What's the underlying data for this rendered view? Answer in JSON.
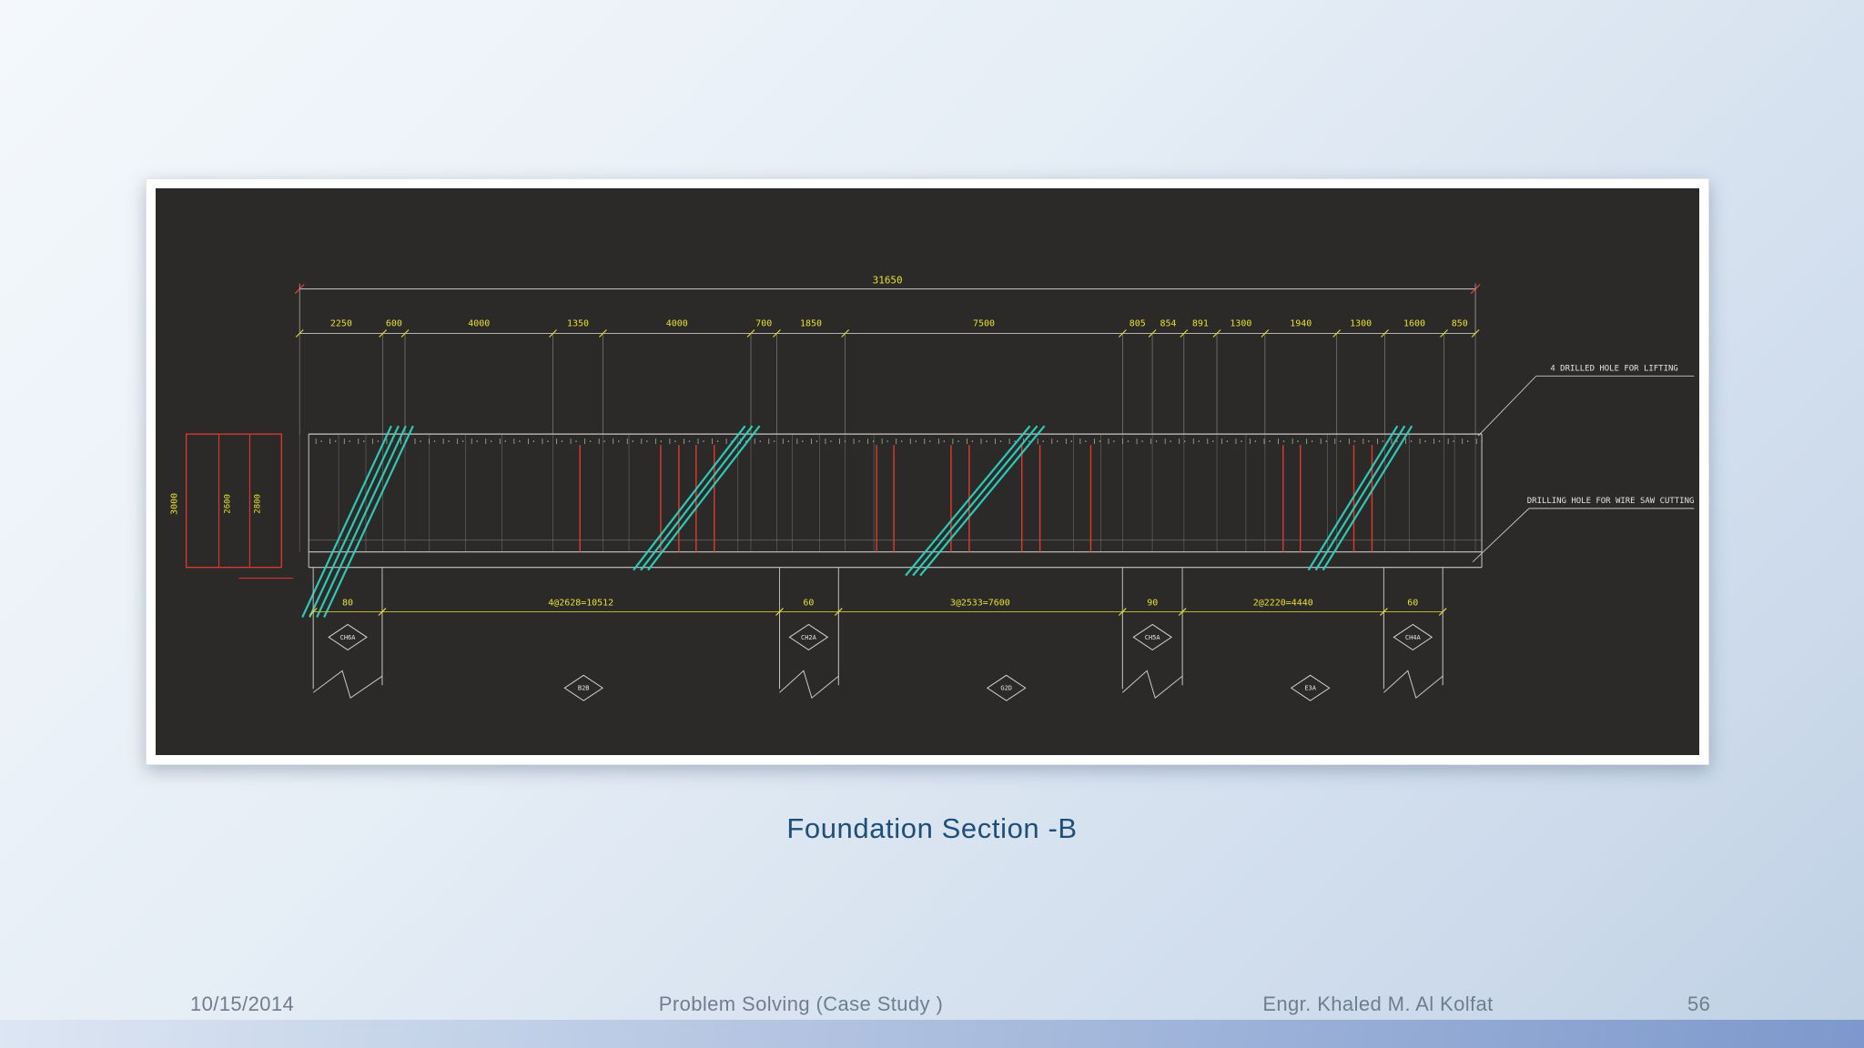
{
  "slide": {
    "caption": "Foundation Section -B"
  },
  "footer": {
    "date": "10/15/2014",
    "center": "Problem Solving  (Case Study )",
    "author": "Engr. Khaled M. Al Kolfat",
    "page": "56"
  },
  "drawing": {
    "total_dim": "31650",
    "top_dims": [
      "2250",
      "600",
      "4000",
      "1350",
      "4000",
      "700",
      "1850",
      "7500",
      "805",
      "854",
      "891",
      "1300",
      "1940",
      "1300",
      "1600",
      "850"
    ],
    "left_dims": [
      "3000",
      "2600",
      "2800"
    ],
    "notes": [
      "4 DRILLED HOLE FOR LIFTING",
      "DRILLING HOLE FOR WIRE SAW CUTTING"
    ],
    "bottom_dims": [
      "80",
      "4@2628=10512",
      "60",
      "3@2533=7600",
      "90",
      "2@2220=4440",
      "60"
    ],
    "diamond_labels_upper": [
      "CH6A",
      "CH2A",
      "CH5A",
      "CH4A"
    ],
    "diamond_labels_lower": [
      "B2B",
      "G2D",
      "E3A"
    ],
    "colors": {
      "dim_text": "#e6e030",
      "line": "#c8c8c8",
      "red": "#e03a2f",
      "teal": "#2fd1c0",
      "background": "#2b2a28"
    }
  }
}
